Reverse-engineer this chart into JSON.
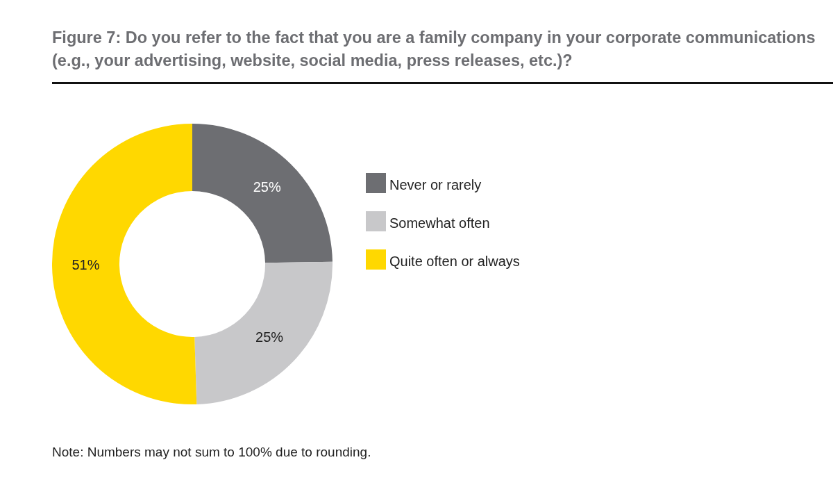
{
  "chart_data": {
    "type": "donut",
    "title": "Figure 7: Do you refer to the fact that you are a family company in your corporate communications (e.g., your advertising, website, social media, press releases, etc.)?",
    "categories": [
      "Never or rarely",
      "Somewhat often",
      "Quite often or always"
    ],
    "values": [
      25,
      25,
      51
    ],
    "value_labels": [
      "25%",
      "25%",
      "51%"
    ],
    "colors": [
      "#6d6e72",
      "#c8c8ca",
      "#ffd800"
    ],
    "legend": "right",
    "annotations": [
      "Note: Numbers may not sum to 100% due to rounding."
    ]
  }
}
